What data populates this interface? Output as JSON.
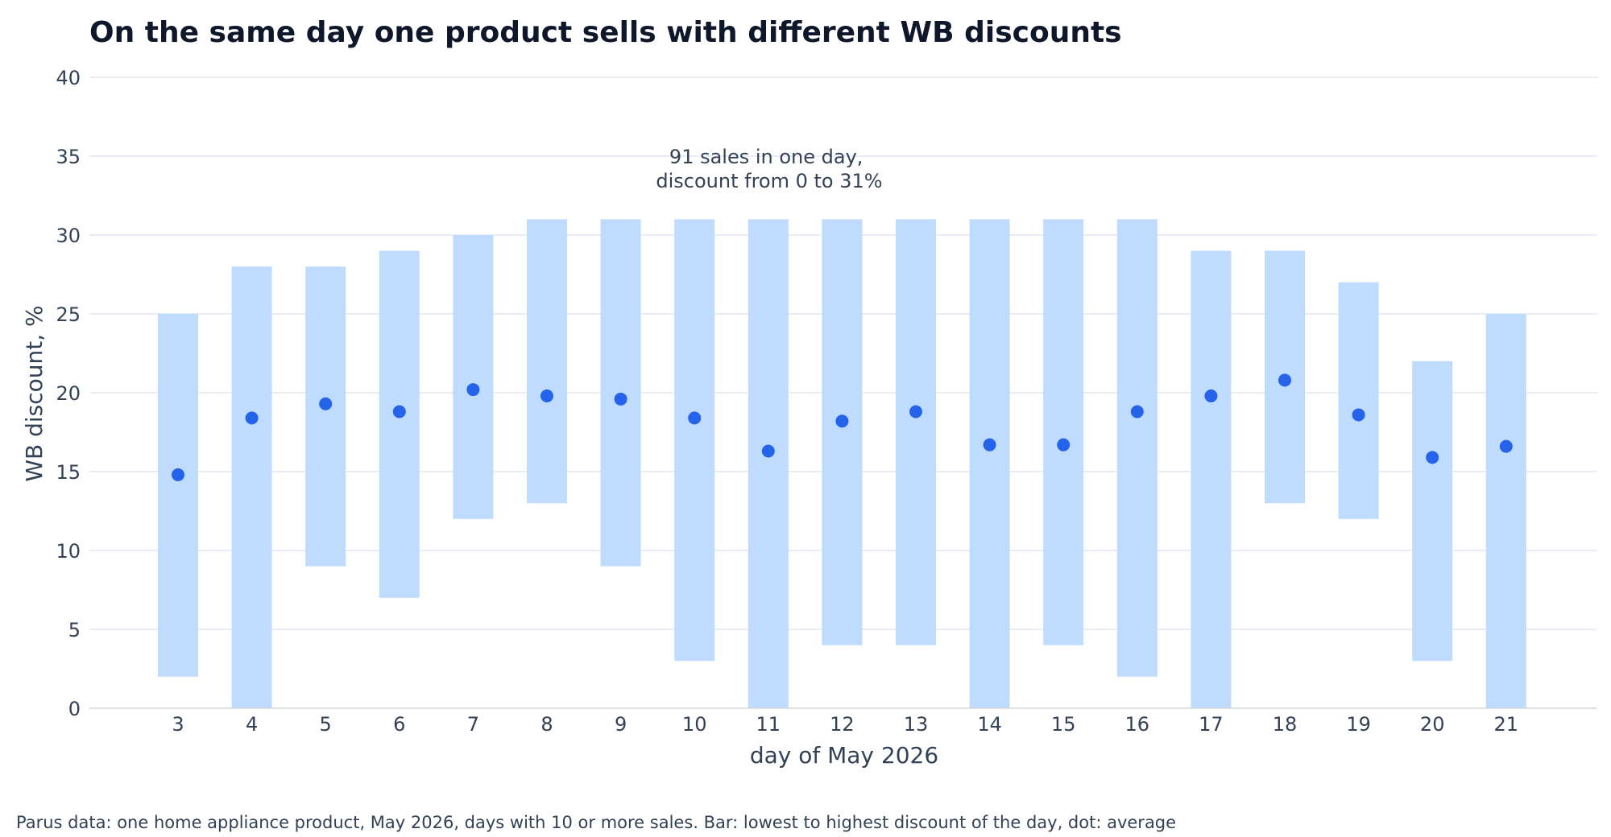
{
  "chart_data": {
    "type": "range-bar-dot",
    "title": "On the same day one product sells with different WB discounts",
    "xlabel": "day of May 2026",
    "ylabel": "WB discount, %",
    "ylim": [
      0,
      40
    ],
    "yticks": [
      0,
      5,
      10,
      15,
      20,
      25,
      30,
      35,
      40
    ],
    "grid": true,
    "colors": {
      "bar": "#bfdbfe",
      "dot": "#2563eb",
      "grid": "#e2e8f0",
      "text": "#334155",
      "title": "#0f172a"
    },
    "x": [
      3,
      4,
      5,
      6,
      7,
      8,
      9,
      10,
      11,
      12,
      13,
      14,
      15,
      16,
      17,
      18,
      19,
      20,
      21
    ],
    "series": [
      {
        "name": "lowest",
        "values": [
          2,
          0,
          9,
          7,
          12,
          13,
          9,
          3,
          0,
          4,
          4,
          0,
          4,
          2,
          0,
          13,
          12,
          3,
          0
        ]
      },
      {
        "name": "highest",
        "values": [
          25,
          28,
          28,
          29,
          30,
          31,
          31,
          31,
          31,
          31,
          31,
          31,
          31,
          31,
          29,
          29,
          27,
          22,
          25
        ]
      },
      {
        "name": "average",
        "values": [
          14.8,
          18.4,
          19.3,
          18.8,
          20.2,
          19.8,
          19.6,
          18.4,
          16.3,
          18.2,
          18.8,
          16.7,
          16.7,
          18.8,
          19.8,
          20.8,
          18.6,
          15.9,
          16.6
        ]
      }
    ],
    "annotations": [
      {
        "lines": [
          "91 sales in one day,",
          "discount from 0 to 31%"
        ],
        "x": 10,
        "y": 33.5
      }
    ],
    "footnote": "Parus data: one home appliance product, May 2026, days with 10 or more sales. Bar: lowest to highest discount of the day, dot: average"
  }
}
